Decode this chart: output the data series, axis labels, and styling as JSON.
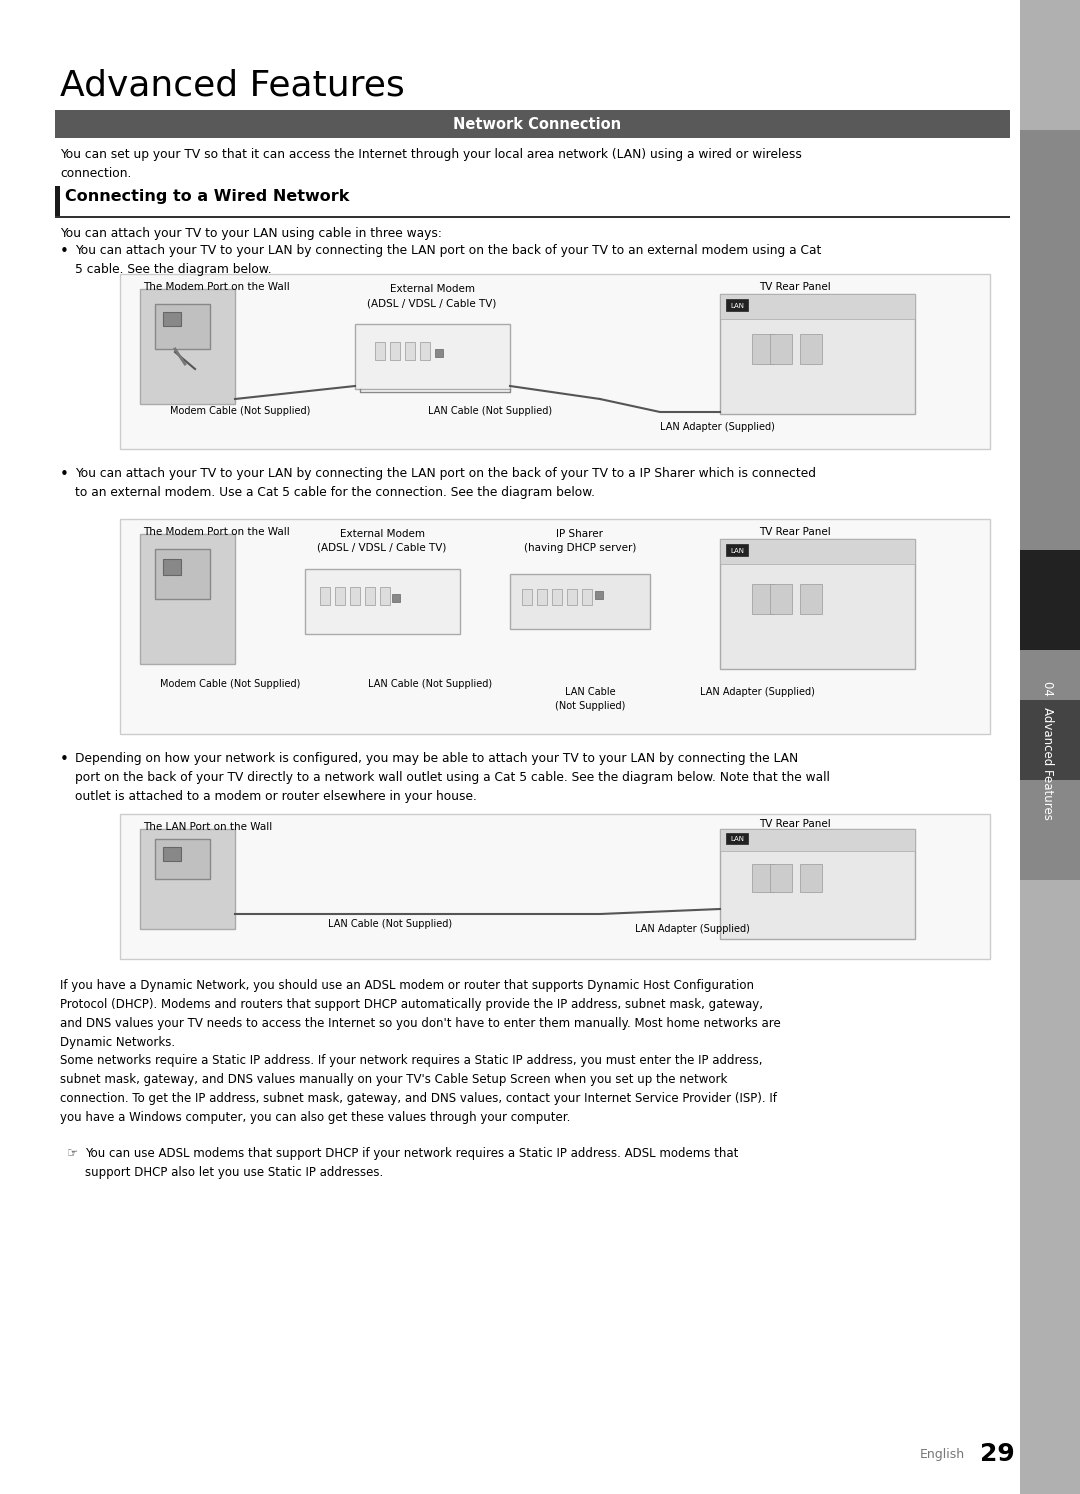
{
  "title": "Advanced Features",
  "section_header": "Network Connection",
  "section_header_bg": "#595959",
  "section_header_fg": "#ffffff",
  "sidebar_text": "04  Advanced Features",
  "sidebar_bg": "#aaaaaa",
  "wired_section_title": "Connecting to a Wired Network",
  "intro_text": "You can set up your TV so that it can access the Internet through your local area network (LAN) using a wired or wireless\nconnection.",
  "three_ways_text": "You can attach your TV to your LAN using cable in three ways:",
  "bullet1_text": "You can attach your TV to your LAN by connecting the LAN port on the back of your TV to an external modem using a Cat\n5 cable. See the diagram below.",
  "bullet2_text": "You can attach your TV to your LAN by connecting the LAN port on the back of your TV to a IP Sharer which is connected\nto an external modem. Use a Cat 5 cable for the connection. See the diagram below.",
  "bullet3_text": "Depending on how your network is configured, you may be able to attach your TV to your LAN by connecting the LAN\nport on the back of your TV directly to a network wall outlet using a Cat 5 cable. See the diagram below. Note that the wall\noutlet is attached to a modem or router elsewhere in your house.",
  "dhcp_text": "If you have a Dynamic Network, you should use an ADSL modem or router that supports Dynamic Host Configuration\nProtocol (DHCP). Modems and routers that support DHCP automatically provide the IP address, subnet mask, gateway,\nand DNS values your TV needs to access the Internet so you don't have to enter them manually. Most home networks are\nDynamic Networks.",
  "static_text": "Some networks require a Static IP address. If your network requires a Static IP address, you must enter the IP address,\nsubnet mask, gateway, and DNS values manually on your TV's Cable Setup Screen when you set up the network\nconnection. To get the IP address, subnet mask, gateway, and DNS values, contact your Internet Service Provider (ISP). If\nyou have a Windows computer, you can also get these values through your computer.",
  "adsl_note": "You can use ADSL modems that support DHCP if your network requires a Static IP address. ADSL modems that\nsupport DHCP also let you use Static IP addresses.",
  "page_num": "29",
  "english_text": "English",
  "diag1": {
    "wall_label": "The Modem Port on the Wall",
    "modem_label": "External Modem\n(ADSL / VDSL / Cable TV)",
    "tv_label": "TV Rear Panel",
    "modem_cable": "Modem Cable (Not Supplied)",
    "lan_cable": "LAN Cable (Not Supplied)",
    "lan_adapter": "LAN Adapter (Supplied)"
  },
  "diag2": {
    "wall_label": "The Modem Port on the Wall",
    "modem_label": "External Modem\n(ADSL / VDSL / Cable TV)",
    "sharer_label": "IP Sharer\n(having DHCP server)",
    "tv_label": "TV Rear Panel",
    "modem_cable": "Modem Cable (Not Supplied)",
    "lan_cable1": "LAN Cable (Not Supplied)",
    "lan_cable2": "LAN Cable\n(Not Supplied)",
    "lan_adapter": "LAN Adapter (Supplied)"
  },
  "diag3": {
    "wall_label": "The LAN Port on the Wall",
    "tv_label": "TV Rear Panel",
    "lan_cable": "LAN Cable (Not Supplied)",
    "lan_adapter": "LAN Adapter (Supplied)"
  },
  "bg_color": "#ffffff",
  "box_bg": "#f5f5f5",
  "box_border": "#cccccc",
  "title_fontsize": 28,
  "header_fontsize": 10,
  "body_fontsize": 8.5,
  "section_title_fontsize": 12
}
